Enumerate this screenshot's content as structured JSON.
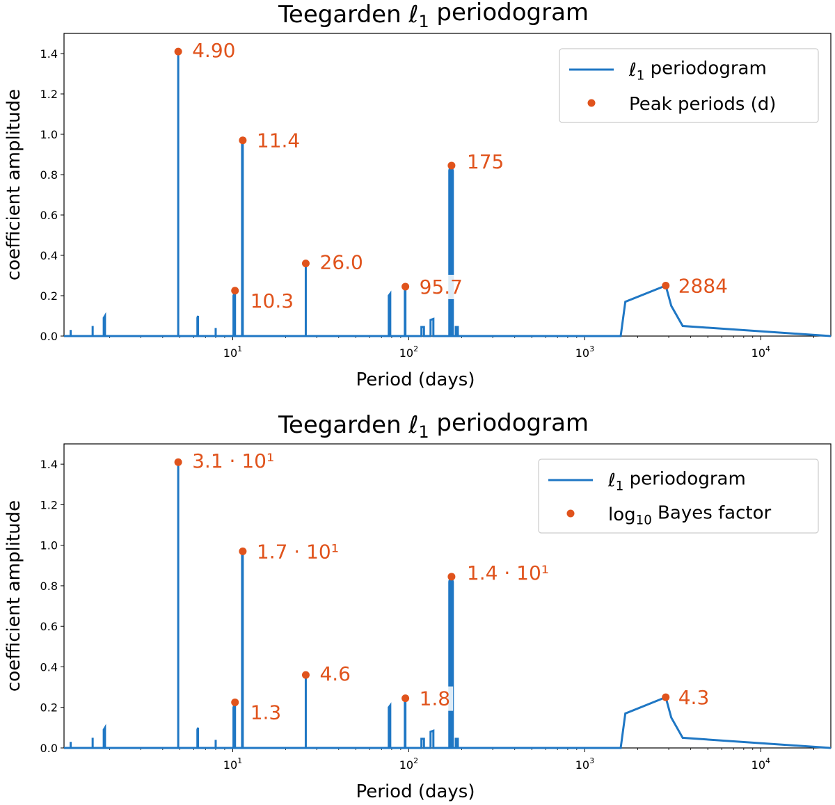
{
  "colors": {
    "line": "#1f77c4",
    "point": "#e0531c",
    "axis": "#000000"
  },
  "chart_data": [
    {
      "type": "line",
      "title": "Teegarden ℓ1 periodogram",
      "xlabel": "Period (days)",
      "ylabel": "coefficient amplitude",
      "xscale": "log",
      "xlim": [
        1.1,
        25000
      ],
      "ylim": [
        0,
        1.5
      ],
      "yticks": [
        "0.0",
        "0.2",
        "0.4",
        "0.6",
        "0.8",
        "1.0",
        "1.2",
        "1.4"
      ],
      "xticks": [
        10,
        100,
        1000,
        10000
      ],
      "legend_position": "top-right",
      "series": [
        {
          "name": "ℓ1 periodogram",
          "x": [
            1.1,
            1.2,
            1.2,
            1.2,
            1.6,
            1.6,
            1.6,
            1.85,
            1.85,
            1.88,
            1.88,
            4.9,
            4.9,
            4.9,
            6.3,
            6.3,
            6.35,
            6.35,
            8.0,
            8.0,
            8.0,
            10.1,
            10.1,
            10.3,
            10.3,
            10.5,
            11.3,
            11.3,
            11.4,
            11.4,
            11.5,
            26.0,
            26.0,
            26.0,
            77.0,
            77.0,
            78.5,
            78.5,
            95.0,
            95.0,
            95.7,
            95.7,
            96.5,
            118.0,
            118.0,
            122.0,
            122.0,
            133.0,
            133.0,
            138.0,
            138.0,
            170.0,
            170.0,
            172.0,
            172.0,
            175.0,
            175.0,
            178.0,
            178.0,
            183.0,
            185.0,
            185.0,
            190.0,
            190.0,
            195.0,
            1600,
            1700,
            2884,
            3100,
            3600,
            25000
          ],
          "y": [
            0,
            0,
            0.03,
            0,
            0,
            0.05,
            0,
            0,
            0.09,
            0.1,
            0,
            0,
            1.41,
            0,
            0,
            0.09,
            0.1,
            0,
            0,
            0.04,
            0,
            0,
            0.2,
            0.22,
            0,
            0,
            0,
            0.95,
            0.97,
            0,
            0,
            0,
            0.36,
            0,
            0,
            0.2,
            0.21,
            0,
            0,
            0.23,
            0.245,
            0,
            0,
            0,
            0.045,
            0.045,
            0,
            0,
            0.08,
            0.085,
            0,
            0,
            0.82,
            0.84,
            0,
            0,
            0.84,
            0.82,
            0,
            0,
            0,
            0.045,
            0.045,
            0,
            0,
            0,
            0.17,
            0.25,
            0.15,
            0.05,
            0
          ]
        },
        {
          "name": "Peak periods (d)",
          "x": [
            4.9,
            11.4,
            10.3,
            26.0,
            95.7,
            175,
            2884
          ],
          "y": [
            1.41,
            0.97,
            0.225,
            0.36,
            0.245,
            0.845,
            0.25
          ],
          "labels": [
            "4.90",
            "11.4",
            "10.3",
            "26.0",
            "95.7",
            "175",
            "2884"
          ]
        }
      ]
    },
    {
      "type": "line",
      "title": "Teegarden ℓ1 periodogram",
      "xlabel": "Period (days)",
      "ylabel": "coefficient amplitude",
      "xscale": "log",
      "xlim": [
        1.1,
        25000
      ],
      "ylim": [
        0,
        1.5
      ],
      "yticks": [
        "0.0",
        "0.2",
        "0.4",
        "0.6",
        "0.8",
        "1.0",
        "1.2",
        "1.4"
      ],
      "xticks": [
        10,
        100,
        1000,
        10000
      ],
      "legend_position": "top-right",
      "series": [
        {
          "name": "ℓ1 periodogram",
          "x": [
            1.1,
            1.2,
            1.2,
            1.2,
            1.6,
            1.6,
            1.6,
            1.85,
            1.85,
            1.88,
            1.88,
            4.9,
            4.9,
            4.9,
            6.3,
            6.3,
            6.35,
            6.35,
            8.0,
            8.0,
            8.0,
            10.1,
            10.1,
            10.3,
            10.3,
            10.5,
            11.3,
            11.3,
            11.4,
            11.4,
            11.5,
            26.0,
            26.0,
            26.0,
            77.0,
            77.0,
            78.5,
            78.5,
            95.0,
            95.0,
            95.7,
            95.7,
            96.5,
            118.0,
            118.0,
            122.0,
            122.0,
            133.0,
            133.0,
            138.0,
            138.0,
            170.0,
            170.0,
            172.0,
            172.0,
            175.0,
            175.0,
            178.0,
            178.0,
            183.0,
            185.0,
            185.0,
            190.0,
            190.0,
            195.0,
            1600,
            1700,
            2884,
            3100,
            3600,
            25000
          ],
          "y": [
            0,
            0,
            0.03,
            0,
            0,
            0.05,
            0,
            0,
            0.09,
            0.1,
            0,
            0,
            1.41,
            0,
            0,
            0.09,
            0.1,
            0,
            0,
            0.04,
            0,
            0,
            0.2,
            0.22,
            0,
            0,
            0,
            0.95,
            0.97,
            0,
            0,
            0,
            0.36,
            0,
            0,
            0.2,
            0.21,
            0,
            0,
            0.23,
            0.245,
            0,
            0,
            0,
            0.045,
            0.045,
            0,
            0,
            0.08,
            0.085,
            0,
            0,
            0.82,
            0.84,
            0,
            0,
            0.84,
            0.82,
            0,
            0,
            0,
            0.045,
            0.045,
            0,
            0,
            0,
            0.17,
            0.25,
            0.15,
            0.05,
            0
          ]
        },
        {
          "name": "log10 Bayes factor",
          "x": [
            4.9,
            11.4,
            10.3,
            26.0,
            95.7,
            175,
            2884
          ],
          "y": [
            1.41,
            0.97,
            0.225,
            0.36,
            0.245,
            0.845,
            0.25
          ],
          "labels": [
            "3.1 · 10¹",
            "1.7 · 10¹",
            "1.3",
            "4.6",
            "1.8",
            "1.4 · 10¹",
            "4.3"
          ]
        }
      ]
    }
  ]
}
